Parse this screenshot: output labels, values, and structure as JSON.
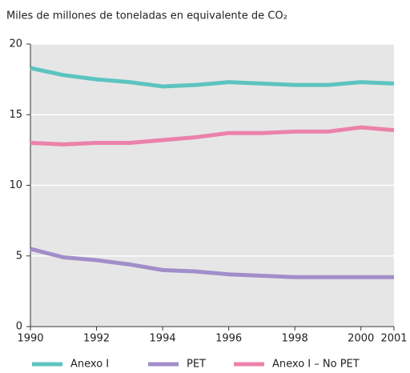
{
  "chart_data": {
    "type": "line",
    "title": "Miles de millones de toneladas en equivalente de CO₂",
    "x": [
      1990,
      1991,
      1992,
      1993,
      1994,
      1995,
      1996,
      1997,
      1998,
      1999,
      2000,
      2001
    ],
    "series": [
      {
        "name": "Anexo I",
        "color": "#5cc4c0",
        "values": [
          18.3,
          17.8,
          17.5,
          17.3,
          17.0,
          17.1,
          17.3,
          17.2,
          17.1,
          17.1,
          17.3,
          17.2
        ]
      },
      {
        "name": "PET",
        "color": "#a18ec9",
        "values": [
          5.5,
          4.9,
          4.7,
          4.4,
          4.0,
          3.9,
          3.7,
          3.6,
          3.5,
          3.5,
          3.5,
          3.5
        ]
      },
      {
        "name": "Anexo I – No PET",
        "color": "#eb82aa",
        "values": [
          13.0,
          12.9,
          13.0,
          13.0,
          13.2,
          13.4,
          13.7,
          13.7,
          13.8,
          13.8,
          14.1,
          13.9
        ]
      }
    ],
    "xlim": [
      1990,
      2001
    ],
    "xticks": [
      1990,
      1992,
      1994,
      1996,
      1998,
      2000,
      2001
    ],
    "ylim": [
      0,
      20
    ],
    "yticks": [
      0,
      5,
      10,
      15,
      20
    ],
    "grid": true
  }
}
